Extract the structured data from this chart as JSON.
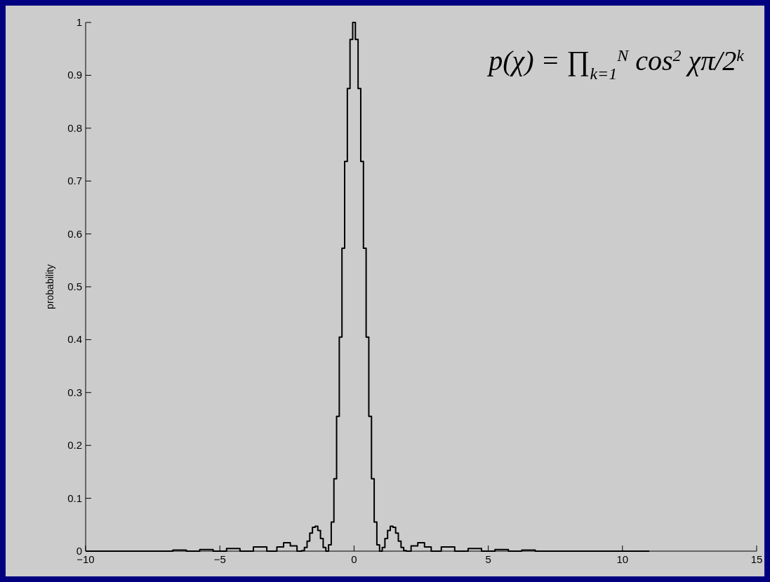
{
  "chart_data": {
    "type": "step",
    "ylabel": "probability",
    "annotations": [
      "p(χ) = ∏$_{k=1}$$^{N}$ cos$^{2}$ χπ/2$^{k}$"
    ],
    "x": [
      -10,
      -7,
      -6.5,
      -6,
      -5.5,
      -5,
      -4.5,
      -4,
      -3.5,
      -3,
      -2.75,
      -2.5,
      -2.25,
      -2,
      -1.9,
      -1.8,
      -1.7,
      -1.6,
      -1.5,
      -1.4,
      -1.3,
      -1.2,
      -1.1,
      -1,
      -0.9,
      -0.8,
      -0.7,
      -0.6,
      -0.5,
      -0.4,
      -0.3,
      -0.2,
      -0.1,
      0,
      0.1,
      0.2,
      0.3,
      0.4,
      0.5,
      0.6,
      0.7,
      0.8,
      0.9,
      1,
      1.1,
      1.2,
      1.3,
      1.4,
      1.5,
      1.6,
      1.7,
      1.8,
      1.9,
      2,
      2.25,
      2.5,
      2.75,
      3,
      3.5,
      4,
      4.5,
      5,
      5.5,
      6,
      6.5,
      7,
      11
    ],
    "series": [
      {
        "color": "#000000",
        "values": [
          0,
          0,
          0.002,
          0,
          0.003,
          0,
          0.005,
          0,
          0.008,
          0,
          0.008,
          0.016,
          0.01,
          0,
          0.001,
          0.007,
          0.019,
          0.034,
          0.045,
          0.047,
          0.039,
          0.024,
          0.007,
          0,
          0.012,
          0.055,
          0.137,
          0.255,
          0.405,
          0.573,
          0.737,
          0.875,
          0.968,
          1,
          0.968,
          0.875,
          0.737,
          0.573,
          0.405,
          0.255,
          0.137,
          0.055,
          0.012,
          0,
          0.007,
          0.024,
          0.039,
          0.047,
          0.045,
          0.034,
          0.019,
          0.007,
          0.001,
          0,
          0.01,
          0.016,
          0.008,
          0,
          0.008,
          0,
          0.005,
          0,
          0.003,
          0,
          0.002,
          0,
          0
        ]
      }
    ],
    "xlim": [
      -10,
      15
    ],
    "xticks": [
      -10,
      -5,
      0,
      5,
      10,
      15
    ],
    "ylim": [
      0,
      1
    ],
    "yticks": [
      0,
      0.1,
      0.2,
      0.3,
      0.4,
      0.5,
      0.6,
      0.7,
      0.8,
      0.9,
      1
    ]
  }
}
